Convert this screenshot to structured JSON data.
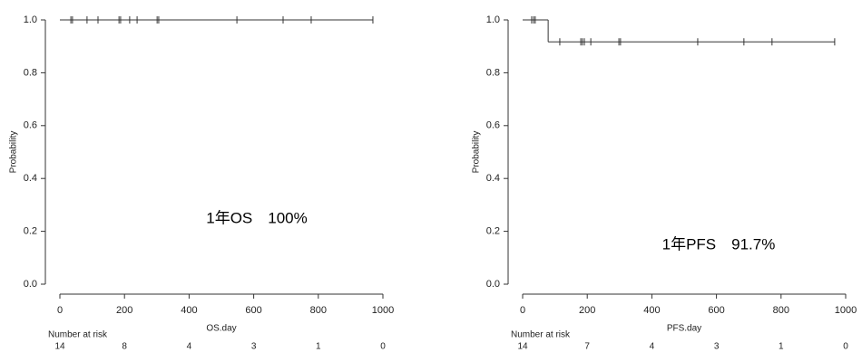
{
  "chart_data": [
    {
      "type": "step",
      "xlabel": "OS.day",
      "ylabel": "Probability",
      "annotation": "1年OS　100%",
      "xlim": [
        0,
        1000
      ],
      "xticks": [
        0,
        200,
        400,
        600,
        800,
        1000
      ],
      "ylim": [
        0,
        1
      ],
      "yticks": [
        {
          "value": 0,
          "label": "0.0"
        },
        0.2,
        0.4,
        0.6,
        0.8,
        {
          "value": 1,
          "label": "1.0"
        }
      ],
      "color": "#000000",
      "x": [
        0,
        969
      ],
      "values": [
        1,
        1
      ],
      "censored": {
        "x": [
          34,
          39,
          84,
          118,
          183,
          188,
          216,
          239,
          301,
          306,
          548,
          691,
          778,
          969
        ],
        "values": [
          1,
          1,
          1,
          1,
          1,
          1,
          1,
          1,
          1,
          1,
          1,
          1,
          1,
          1
        ]
      },
      "risk_title": "Number at risk",
      "risk_x": [
        0,
        200,
        400,
        600,
        800,
        1000
      ],
      "risk": [
        14,
        8,
        4,
        3,
        1,
        0
      ]
    },
    {
      "type": "step",
      "xlabel": "PFS.day",
      "ylabel": "Probability",
      "annotation": "1年PFS　91.7%",
      "xlim": [
        0,
        1000
      ],
      "xticks": [
        0,
        200,
        400,
        600,
        800,
        1000
      ],
      "ylim": [
        0,
        1
      ],
      "yticks": [
        {
          "value": 0,
          "label": "0.0"
        },
        0.2,
        0.4,
        0.6,
        0.8,
        {
          "value": 1,
          "label": "1.0"
        }
      ],
      "color": "#000000",
      "x": [
        0,
        79,
        966
      ],
      "values": [
        1,
        0.917,
        0.917
      ],
      "censored": {
        "x": [
          28,
          34,
          39,
          115,
          180,
          185,
          191,
          211,
          298,
          303,
          542,
          685,
          772,
          966
        ],
        "values": [
          1,
          1,
          1,
          0.917,
          0.917,
          0.917,
          0.917,
          0.917,
          0.917,
          0.917,
          0.917,
          0.917,
          0.917,
          0.917
        ]
      },
      "risk_title": "Number at risk",
      "risk_x": [
        0,
        200,
        400,
        600,
        800,
        1000
      ],
      "risk": [
        14,
        7,
        4,
        3,
        1,
        0
      ]
    }
  ]
}
